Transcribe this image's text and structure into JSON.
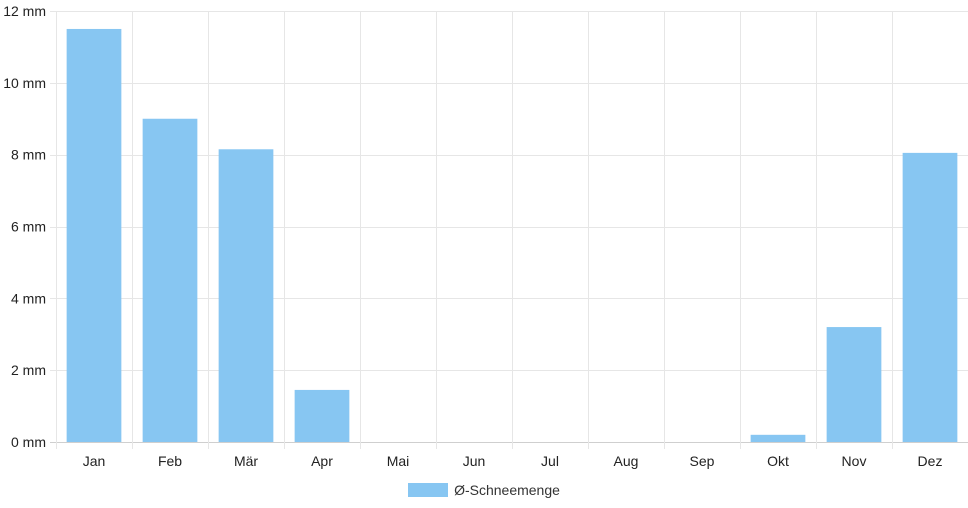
{
  "chart_data": {
    "type": "bar",
    "categories": [
      "Jan",
      "Feb",
      "Mär",
      "Apr",
      "Mai",
      "Jun",
      "Jul",
      "Aug",
      "Sep",
      "Okt",
      "Nov",
      "Dez"
    ],
    "series": [
      {
        "name": "Ø-Schneemenge",
        "values": [
          11.5,
          9.0,
          8.15,
          1.45,
          0,
          0,
          0,
          0,
          0,
          0.2,
          3.2,
          8.05
        ]
      }
    ],
    "yticks": [
      0,
      2,
      4,
      6,
      8,
      10,
      12
    ],
    "ytick_labels": [
      "0 mm",
      "2 mm",
      "4 mm",
      "6 mm",
      "8 mm",
      "10 mm",
      "12 mm"
    ],
    "ylim": [
      0,
      12
    ],
    "grid": true,
    "legend_position": "bottom",
    "bar_color": "#87c6f2",
    "grid_color": "#e6e6e6"
  }
}
